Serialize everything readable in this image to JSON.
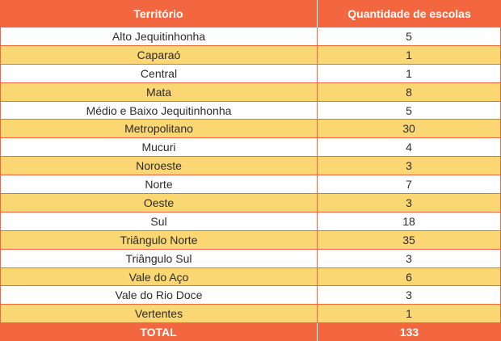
{
  "table": {
    "headers": {
      "territory": "Território",
      "count": "Quantidade de escolas"
    },
    "rows": [
      {
        "territory": "Alto Jequitinhonha",
        "count": "5"
      },
      {
        "territory": "Caparaó",
        "count": "1"
      },
      {
        "territory": "Central",
        "count": "1"
      },
      {
        "territory": "Mata",
        "count": "8"
      },
      {
        "territory": "Médio e Baixo Jequitinhonha",
        "count": "5"
      },
      {
        "territory": "Metropolitano",
        "count": "30"
      },
      {
        "territory": "Mucuri",
        "count": "4"
      },
      {
        "territory": "Noroeste",
        "count": "3"
      },
      {
        "territory": "Norte",
        "count": "7"
      },
      {
        "territory": "Oeste",
        "count": "3"
      },
      {
        "territory": "Sul",
        "count": "18"
      },
      {
        "territory": "Triângulo Norte",
        "count": "35"
      },
      {
        "territory": "Triângulo Sul",
        "count": "3"
      },
      {
        "territory": "Vale do Aço",
        "count": "6"
      },
      {
        "territory": "Vale do Rio Doce",
        "count": "3"
      },
      {
        "territory": "Vertentes",
        "count": "1"
      }
    ],
    "total": {
      "label": "TOTAL",
      "value": "133"
    }
  },
  "colors": {
    "header": "#f2673f",
    "stripe": "#fbd774",
    "border": "#f2673f"
  }
}
